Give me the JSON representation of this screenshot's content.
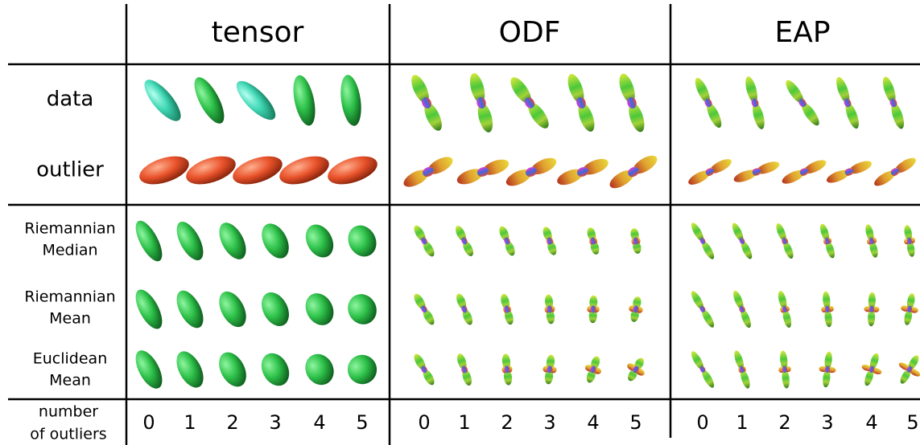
{
  "header": {
    "columns": [
      "tensor",
      "ODF",
      "EAP"
    ]
  },
  "rows": [
    {
      "lines": [
        "data"
      ]
    },
    {
      "lines": [
        "outlier"
      ]
    },
    {
      "lines": [
        "Riemannian",
        "Median"
      ]
    },
    {
      "lines": [
        "Riemannian",
        "Mean"
      ]
    },
    {
      "lines": [
        "Euclidean",
        "Mean"
      ]
    }
  ],
  "footer": {
    "label": [
      "number",
      "of outliers"
    ],
    "counts": [
      [
        0,
        1,
        2,
        3,
        4,
        5
      ],
      [
        0,
        1,
        2,
        3,
        4,
        5
      ],
      [
        0,
        1,
        2,
        3,
        4,
        5
      ]
    ]
  }
}
